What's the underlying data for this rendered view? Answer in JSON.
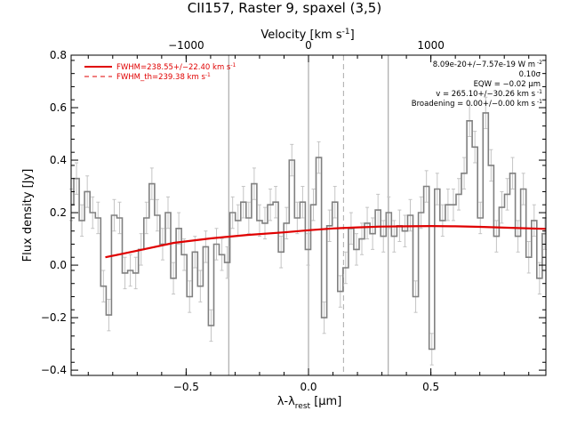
{
  "chart_data": {
    "type": "line",
    "title": "CII157, Raster 9, spaxel (3,5)",
    "xlabel": "λ-λ",
    "xlabel_sub": "rest",
    "xlabel_unit": "[μm]",
    "ylabel": "Flux density [Jy]",
    "top_axis_label": "Velocity [km s",
    "top_axis_label_sup": "-1",
    "top_axis_label_end": "]",
    "xlim": [
      -0.97,
      0.97
    ],
    "ylim": [
      -0.42,
      0.8
    ],
    "x_ticks": [
      -0.5,
      0.0,
      0.5
    ],
    "x_tick_labels": [
      "−0.5",
      "0.0",
      "0.5"
    ],
    "y_ticks": [
      -0.4,
      -0.2,
      0.0,
      0.2,
      0.4,
      0.6,
      0.8
    ],
    "y_tick_labels": [
      "−0.4",
      "−0.2",
      "0.0",
      "0.2",
      "0.4",
      "0.6",
      "0.8"
    ],
    "top_ticks_x": [
      -0.5,
      0.0,
      0.5
    ],
    "top_tick_labels": [
      "−1000",
      "0",
      "1000"
    ],
    "vertical_lines": [
      -0.326,
      0.0,
      0.326
    ],
    "dashed_line_x": 0.143,
    "legend": [
      {
        "label": "FWHM=238.55+/−22.40 km s",
        "sup": "-1",
        "style": "solid"
      },
      {
        "label": "FWHM_th=239.38 km s",
        "sup": "-1",
        "style": "dashed"
      }
    ],
    "annotations": [
      "8.09e-20+/−7.57e-19 W m",
      "0.10σ",
      "EQW = −0.02 μm",
      "v = 265.10+/−30.26 km s",
      "Broadening = 0.00+/−0.00 km s"
    ],
    "annotation_sups": [
      "-2",
      "",
      "",
      "-1",
      "-1"
    ],
    "spectrum": {
      "name": "spectrum",
      "color": "#808080",
      "x": [
        -0.97,
        -0.948,
        -0.926,
        -0.904,
        -0.882,
        -0.86,
        -0.838,
        -0.816,
        -0.794,
        -0.772,
        -0.75,
        -0.728,
        -0.706,
        -0.684,
        -0.662,
        -0.64,
        -0.618,
        -0.596,
        -0.574,
        -0.552,
        -0.53,
        -0.508,
        -0.486,
        -0.464,
        -0.442,
        -0.42,
        -0.398,
        -0.376,
        -0.354,
        -0.332,
        -0.31,
        -0.288,
        -0.266,
        -0.244,
        -0.222,
        -0.2,
        -0.178,
        -0.156,
        -0.134,
        -0.112,
        -0.09,
        -0.068,
        -0.046,
        -0.024,
        -0.002,
        0.02,
        0.042,
        0.064,
        0.086,
        0.108,
        0.13,
        0.152,
        0.174,
        0.196,
        0.218,
        0.24,
        0.262,
        0.284,
        0.306,
        0.328,
        0.35,
        0.372,
        0.394,
        0.416,
        0.438,
        0.46,
        0.482,
        0.504,
        0.526,
        0.548,
        0.57,
        0.592,
        0.614,
        0.636,
        0.658,
        0.68,
        0.702,
        0.724,
        0.746,
        0.768,
        0.79,
        0.812,
        0.834,
        0.856,
        0.878,
        0.9,
        0.922,
        0.944,
        0.966
      ],
      "y": [
        0.23,
        0.33,
        0.17,
        0.28,
        0.2,
        0.18,
        -0.08,
        -0.19,
        0.19,
        0.18,
        -0.03,
        -0.02,
        -0.03,
        0.06,
        0.18,
        0.31,
        0.19,
        0.08,
        0.2,
        -0.05,
        0.14,
        0.04,
        -0.12,
        0.05,
        -0.08,
        0.07,
        -0.23,
        0.08,
        0.04,
        0.01,
        0.2,
        0.17,
        0.24,
        0.18,
        0.31,
        0.17,
        0.16,
        0.23,
        0.24,
        0.05,
        0.16,
        0.4,
        0.18,
        0.24,
        0.06,
        0.23,
        0.41,
        -0.2,
        0.15,
        0.24,
        -0.1,
        -0.01,
        0.14,
        0.06,
        0.1,
        0.16,
        0.12,
        0.21,
        0.11,
        0.2,
        0.11,
        0.15,
        0.13,
        0.19,
        -0.12,
        0.2,
        0.3,
        -0.32,
        0.29,
        0.17,
        0.23,
        0.23,
        0.27,
        0.35,
        0.55,
        0.45,
        0.18,
        0.58,
        0.38,
        0.11,
        0.22,
        0.27,
        0.35,
        0.11,
        0.29,
        0.03,
        0.17,
        -0.05,
        0.12
      ],
      "err": [
        0.06,
        0.06,
        0.06,
        0.06,
        0.06,
        0.06,
        0.06,
        0.06,
        0.06,
        0.06,
        0.06,
        0.06,
        0.06,
        0.06,
        0.06,
        0.06,
        0.06,
        0.06,
        0.06,
        0.06,
        0.06,
        0.06,
        0.06,
        0.06,
        0.06,
        0.06,
        0.06,
        0.06,
        0.06,
        0.06,
        0.06,
        0.06,
        0.06,
        0.06,
        0.06,
        0.06,
        0.06,
        0.06,
        0.06,
        0.06,
        0.06,
        0.06,
        0.06,
        0.06,
        0.06,
        0.06,
        0.06,
        0.06,
        0.06,
        0.06,
        0.06,
        0.06,
        0.06,
        0.06,
        0.06,
        0.06,
        0.06,
        0.06,
        0.06,
        0.06,
        0.06,
        0.06,
        0.06,
        0.06,
        0.06,
        0.06,
        0.06,
        0.06,
        0.06,
        0.06,
        0.06,
        0.06,
        0.06,
        0.06,
        0.06,
        0.06,
        0.06,
        0.06,
        0.06,
        0.06,
        0.06,
        0.06,
        0.06,
        0.06,
        0.06,
        0.06,
        0.06,
        0.06,
        0.06
      ]
    },
    "fit": {
      "name": "fit",
      "color": "#e00000",
      "x": [
        -0.83,
        -0.7,
        -0.55,
        -0.4,
        -0.25,
        -0.1,
        0.0,
        0.1,
        0.2,
        0.3,
        0.4,
        0.5,
        0.6,
        0.7,
        0.8,
        0.97
      ],
      "y": [
        0.03,
        0.055,
        0.085,
        0.102,
        0.115,
        0.125,
        0.133,
        0.14,
        0.144,
        0.147,
        0.148,
        0.149,
        0.148,
        0.146,
        0.143,
        0.138
      ]
    }
  }
}
